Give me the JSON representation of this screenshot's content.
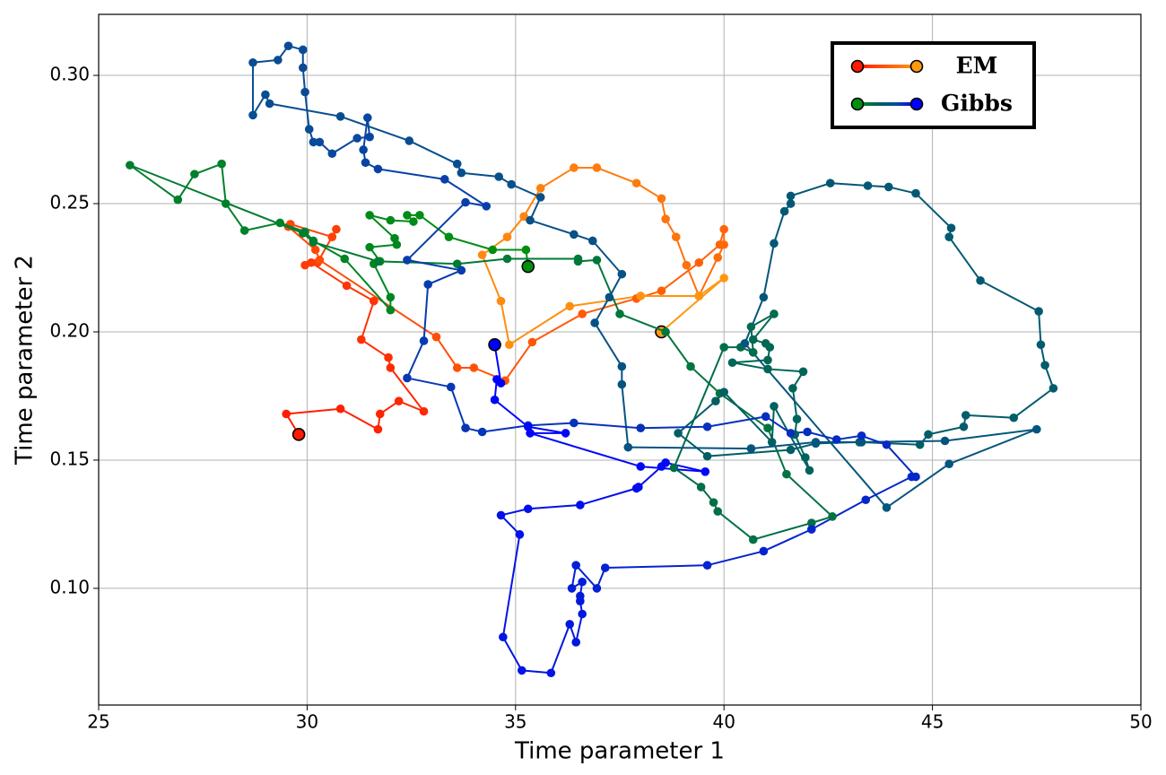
{
  "chart_data": {
    "type": "trajectory",
    "x_label": "Time parameter 1",
    "y_label": "Time parameter 2",
    "xlim": [
      25,
      50
    ],
    "ylim": [
      0.0545,
      0.3238
    ],
    "xticks": [
      25,
      30,
      35,
      40,
      45,
      50
    ],
    "yticks": [
      {
        "value": 0.1,
        "label": "0.10"
      },
      {
        "value": 0.15,
        "label": "0.15"
      },
      {
        "value": 0.2,
        "label": "0.20"
      },
      {
        "value": 0.25,
        "label": "0.25"
      },
      {
        "value": 0.3,
        "label": "0.30"
      }
    ],
    "grid": true,
    "legend": "upper right",
    "series": [
      {
        "name": "EM",
        "colors": [
          "#ff1a00",
          "#ff9a10"
        ],
        "x": [
          29.8,
          29.5,
          30.8,
          31.7,
          31.75,
          32.2,
          32.8,
          32.0,
          31.95,
          31.3,
          31.6,
          30.95,
          30.1,
          29.95,
          30.25,
          30.7,
          30.6,
          29.6,
          29.55,
          30.2,
          30.3,
          33.1,
          33.6,
          34.0,
          34.75,
          35.4,
          36.6,
          37.9,
          38.5,
          39.4,
          39.9,
          40.0,
          40.0,
          39.85,
          39.4,
          39.1,
          38.85,
          38.6,
          38.5,
          37.9,
          36.95,
          36.4,
          35.6,
          35.2,
          34.8,
          34.2,
          34.65,
          34.85,
          36.3,
          38.0,
          39.4,
          40.0,
          38.5
        ],
        "y": [
          0.16,
          0.168,
          0.17,
          0.162,
          0.168,
          0.173,
          0.169,
          0.186,
          0.19,
          0.197,
          0.212,
          0.218,
          0.227,
          0.226,
          0.227,
          0.24,
          0.237,
          0.242,
          0.241,
          0.232,
          0.228,
          0.198,
          0.186,
          0.186,
          0.181,
          0.196,
          0.207,
          0.213,
          0.216,
          0.227,
          0.234,
          0.24,
          0.234,
          0.229,
          0.214,
          0.226,
          0.237,
          0.244,
          0.252,
          0.258,
          0.264,
          0.264,
          0.256,
          0.245,
          0.237,
          0.23,
          0.212,
          0.195,
          0.21,
          0.214,
          0.214,
          0.221,
          0.2
        ]
      },
      {
        "name": "Gibbs",
        "colors": [
          "#009010",
          "#006060",
          "#0a4a9a",
          "#0000ff"
        ],
        "x": [
          35.3,
          35.25,
          34.45,
          33.4,
          32.7,
          32.4,
          32.55,
          32.0,
          31.5,
          32.1,
          32.15,
          31.5,
          31.75,
          31.6,
          32.0,
          32.0,
          30.9,
          30.15,
          29.95,
          29.35,
          28.5,
          28.05,
          27.95,
          27.3,
          26.9,
          25.75,
          29.9,
          30.15,
          31.7,
          33.6,
          34.8,
          36.5,
          36.5,
          36.95,
          37.5,
          38.6,
          39.2,
          39.9,
          41.05,
          41.5,
          42.6,
          42.1,
          40.7,
          39.85,
          39.75,
          39.45,
          38.8,
          40.0,
          40.4,
          40.7,
          40.65,
          41.2,
          40.7,
          41.0,
          41.1,
          41.05,
          40.2,
          41.05,
          41.9,
          41.65,
          41.75,
          41.7,
          41.95,
          42.05,
          41.2,
          41.15,
          40.0,
          39.8,
          38.9,
          39.6,
          41.6,
          42.2,
          43.25,
          44.7,
          44.9,
          45.75,
          45.8,
          46.95,
          47.9,
          47.7,
          47.6,
          47.55,
          46.15,
          45.4,
          45.45,
          44.6,
          43.95,
          43.45,
          42.55,
          41.6,
          41.6,
          41.45,
          41.2,
          40.95,
          40.5,
          43.9,
          45.4,
          47.5,
          45.3,
          43.3,
          42.2,
          40.65,
          37.7,
          37.55,
          37.55,
          36.9,
          37.25,
          37.55,
          36.85,
          36.4,
          35.35,
          35.6,
          34.9,
          34.6,
          33.7,
          33.6,
          32.45,
          30.8,
          29.1,
          29.0,
          28.7,
          28.7,
          29.3,
          29.55,
          29.9,
          29.9,
          29.95,
          30.05,
          30.15,
          30.3,
          30.6,
          31.2,
          31.5,
          31.45,
          31.35,
          31.4,
          31.7,
          33.3,
          34.3,
          33.8,
          32.4,
          33.7,
          32.9,
          32.8,
          32.4,
          33.45,
          33.8,
          34.2,
          35.3,
          36.4,
          38.0,
          39.6,
          41.0,
          41.6,
          42.0,
          42.7,
          43.3,
          43.9,
          44.6,
          44.5,
          43.4,
          42.1,
          40.95,
          39.6,
          37.15,
          36.95,
          36.45,
          36.35,
          36.6,
          36.55,
          36.55,
          36.6,
          36.45,
          36.3,
          35.85,
          35.15,
          34.7,
          35.1,
          34.65,
          35.3,
          36.55,
          37.9,
          37.95,
          38.5,
          38.6,
          39.55,
          38.0,
          35.35,
          36.2,
          35.3,
          34.5,
          34.55,
          34.65,
          34.5
        ],
        "y": [
          0.2255,
          0.232,
          0.232,
          0.237,
          0.2455,
          0.2455,
          0.243,
          0.2435,
          0.2455,
          0.2365,
          0.234,
          0.233,
          0.2275,
          0.2265,
          0.2135,
          0.2085,
          0.2285,
          0.2355,
          0.239,
          0.2425,
          0.2395,
          0.25,
          0.2655,
          0.2615,
          0.2515,
          0.265,
          0.2385,
          0.235,
          0.2275,
          0.2265,
          0.2285,
          0.2285,
          0.2275,
          0.228,
          0.207,
          0.2,
          0.1865,
          0.176,
          0.1625,
          0.1445,
          0.128,
          0.1255,
          0.119,
          0.13,
          0.1335,
          0.1395,
          0.147,
          0.194,
          0.194,
          0.192,
          0.202,
          0.207,
          0.197,
          0.1955,
          0.194,
          0.189,
          0.188,
          0.1855,
          0.1845,
          0.178,
          0.166,
          0.16,
          0.151,
          0.146,
          0.171,
          0.157,
          0.1765,
          0.173,
          0.1605,
          0.1515,
          0.154,
          0.1565,
          0.157,
          0.156,
          0.16,
          0.163,
          0.1675,
          0.1665,
          0.178,
          0.187,
          0.195,
          0.208,
          0.22,
          0.237,
          0.2405,
          0.254,
          0.2565,
          0.257,
          0.258,
          0.253,
          0.25,
          0.247,
          0.2345,
          0.2135,
          0.1955,
          0.1315,
          0.1485,
          0.162,
          0.1575,
          0.157,
          0.157,
          0.1545,
          0.155,
          0.1795,
          0.1865,
          0.2035,
          0.2135,
          0.2225,
          0.2355,
          0.238,
          0.2435,
          0.2525,
          0.2575,
          0.2605,
          0.262,
          0.2655,
          0.2745,
          0.284,
          0.289,
          0.2925,
          0.2845,
          0.305,
          0.306,
          0.3115,
          0.31,
          0.303,
          0.2935,
          0.279,
          0.274,
          0.274,
          0.2695,
          0.2755,
          0.276,
          0.2835,
          0.271,
          0.266,
          0.2635,
          0.2595,
          0.249,
          0.2505,
          0.228,
          0.224,
          0.2185,
          0.1965,
          0.182,
          0.1785,
          0.1625,
          0.161,
          0.1635,
          0.1645,
          0.1625,
          0.163,
          0.167,
          0.1605,
          0.161,
          0.158,
          0.1595,
          0.156,
          0.1435,
          0.1435,
          0.1345,
          0.123,
          0.1145,
          0.109,
          0.108,
          0.1,
          0.109,
          0.1,
          0.1025,
          0.097,
          0.095,
          0.09,
          0.079,
          0.086,
          0.067,
          0.068,
          0.081,
          0.121,
          0.1285,
          0.131,
          0.1325,
          0.139,
          0.1395,
          0.1475,
          0.149,
          0.1455,
          0.1475,
          0.1605,
          0.1605,
          0.163,
          0.1735,
          0.1815,
          0.18,
          0.195
        ]
      }
    ]
  }
}
